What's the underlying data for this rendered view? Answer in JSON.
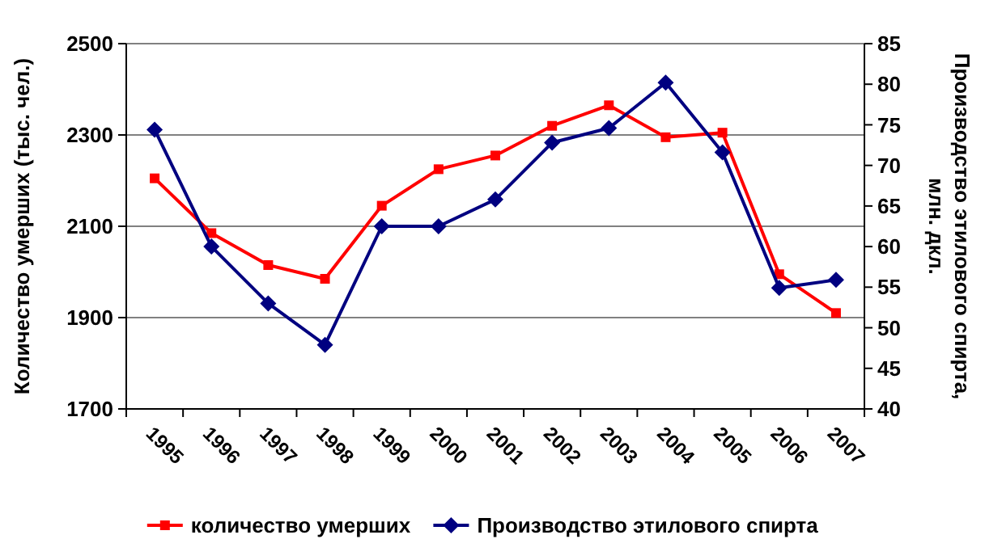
{
  "chart_data": {
    "type": "line",
    "ylabel": "Количество умерших (тыс. чел.)",
    "y2label": "Производство этилового спирта, млн. дкл.",
    "categories": [
      "1995",
      "1996",
      "1997",
      "1998",
      "1999",
      "2000",
      "2001",
      "2002",
      "2003",
      "2004",
      "2005",
      "2006",
      "2007"
    ],
    "series": [
      {
        "name": "количество умерших",
        "color": "#ff0000",
        "marker": "square",
        "values": [
          2205,
          2085,
          2015,
          1985,
          2145,
          2225,
          2255,
          2320,
          2365,
          2295,
          2305,
          1995,
          1910
        ]
      },
      {
        "name": "Производство этилового спирта",
        "color": "#000080",
        "marker": "diamond",
        "axis": "y2",
        "values": [
          74.4,
          60.0,
          53.0,
          47.9,
          62.5,
          62.5,
          65.8,
          72.8,
          74.6,
          80.2,
          71.6,
          54.9,
          55.9
        ]
      }
    ],
    "ylim": [
      1700,
      2500
    ],
    "yticks": [
      1700,
      1900,
      2100,
      2300,
      2500
    ],
    "y2lim": [
      40,
      85
    ],
    "y2ticks": [
      40,
      45,
      50,
      55,
      60,
      65,
      70,
      75,
      80,
      85
    ],
    "grid": "y",
    "legend": "bottom"
  }
}
